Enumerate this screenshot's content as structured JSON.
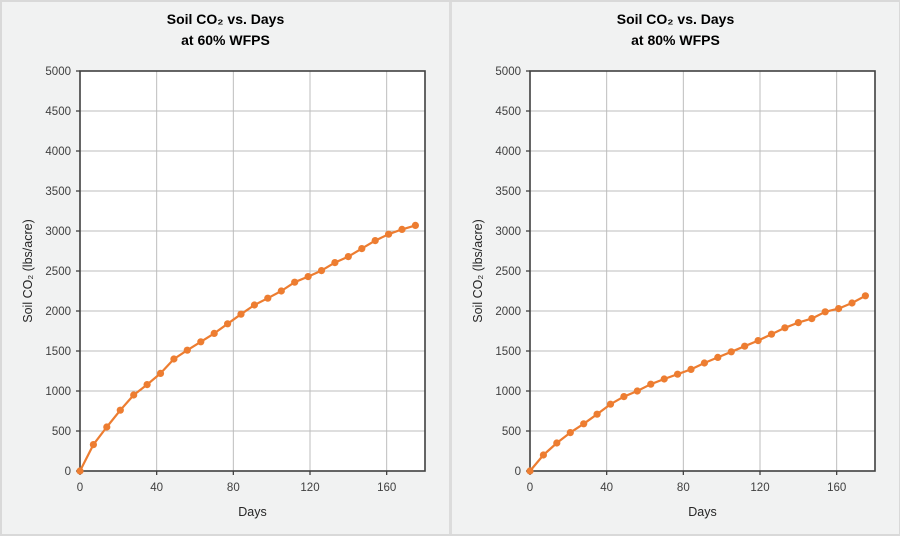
{
  "page": {
    "background": "#f1f2f2",
    "divider_color": "#dcdcdc",
    "outer_border_color": "#d9d9d9",
    "plot_background": "#ffffff",
    "gridline_color": "#bdbdbd",
    "plot_border_color": "#404040",
    "tick_label_color": "#404040",
    "accent_orange": "#ED7D31"
  },
  "chart_data": [
    {
      "type": "line",
      "title_line1": "Soil CO₂ vs. Days",
      "title_line2": "at 60% WFPS",
      "xlabel": "Days",
      "ylabel": "Soil CO₂ (lbs/acre)",
      "x": [
        0,
        7,
        14,
        21,
        28,
        35,
        42,
        49,
        56,
        63,
        70,
        77,
        84,
        91,
        98,
        105,
        112,
        119,
        126,
        133,
        140,
        147,
        154,
        161,
        168,
        175
      ],
      "series": [
        {
          "name": "Soil CO₂ at 60% WFPS",
          "values": [
            0,
            330,
            550,
            760,
            950,
            1080,
            1220,
            1400,
            1510,
            1615,
            1720,
            1840,
            1960,
            2075,
            2160,
            2250,
            2360,
            2430,
            2505,
            2605,
            2680,
            2780,
            2880,
            2960,
            3020,
            3070
          ]
        }
      ],
      "xlim": [
        0,
        180
      ],
      "ylim": [
        0,
        5000
      ],
      "x_ticks": [
        0,
        40,
        80,
        120,
        160
      ],
      "y_ticks": [
        0,
        500,
        1000,
        1500,
        2000,
        2500,
        3000,
        3500,
        4000,
        4500,
        5000
      ],
      "grid": true,
      "legend": false,
      "line_color": "#ED7D31",
      "marker_color": "#ED7D31"
    },
    {
      "type": "line",
      "title_line1": "Soil CO₂ vs. Days",
      "title_line2": "at 80% WFPS",
      "xlabel": "Days",
      "ylabel": "Soil CO₂ (lbs/acre)",
      "x": [
        0,
        7,
        14,
        21,
        28,
        35,
        42,
        49,
        56,
        63,
        70,
        77,
        84,
        91,
        98,
        105,
        112,
        119,
        126,
        133,
        140,
        147,
        154,
        161,
        168,
        175
      ],
      "series": [
        {
          "name": "Soil CO₂ at 80% WFPS",
          "values": [
            0,
            200,
            350,
            480,
            590,
            710,
            835,
            930,
            1000,
            1085,
            1150,
            1210,
            1270,
            1350,
            1420,
            1490,
            1560,
            1630,
            1710,
            1790,
            1855,
            1905,
            1990,
            2030,
            2100,
            2190
          ]
        }
      ],
      "xlim": [
        0,
        180
      ],
      "ylim": [
        0,
        5000
      ],
      "x_ticks": [
        0,
        40,
        80,
        120,
        160
      ],
      "y_ticks": [
        0,
        500,
        1000,
        1500,
        2000,
        2500,
        3000,
        3500,
        4000,
        4500,
        5000
      ],
      "grid": true,
      "legend": false,
      "line_color": "#ED7D31",
      "marker_color": "#ED7D31"
    }
  ]
}
